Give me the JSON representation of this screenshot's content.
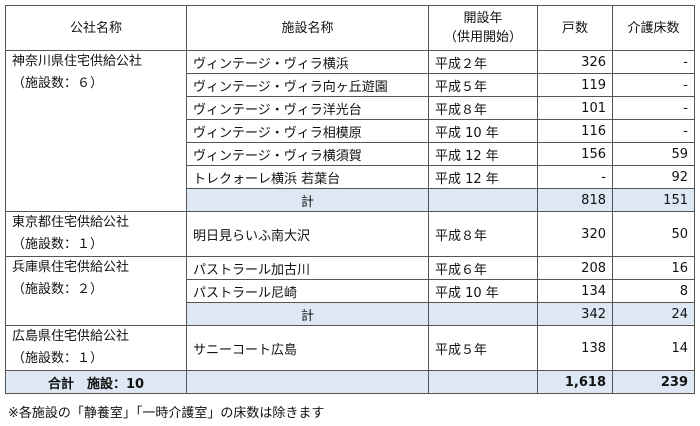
{
  "headers": {
    "company": "公社名称",
    "facility": "施設名称",
    "year_line1": "開設年",
    "year_line2": "（供用開始）",
    "units": "戸数",
    "beds": "介護床数"
  },
  "groups": [
    {
      "company": "神奈川県住宅供給公社",
      "count": "（施設数：６）",
      "rows": [
        {
          "facility": "ヴィンテージ・ヴィラ横浜",
          "year": "平成２年",
          "units": "326",
          "beds": "-"
        },
        {
          "facility": "ヴィンテージ・ヴィラ向ヶ丘遊園",
          "year": "平成５年",
          "units": "119",
          "beds": "-"
        },
        {
          "facility": "ヴィンテージ・ヴィラ洋光台",
          "year": "平成８年",
          "units": "101",
          "beds": "-"
        },
        {
          "facility": "ヴィンテージ・ヴィラ相模原",
          "year": "平成 10 年",
          "units": "116",
          "beds": "-"
        },
        {
          "facility": "ヴィンテージ・ヴィラ横須賀",
          "year": "平成 12 年",
          "units": "156",
          "beds": "59"
        },
        {
          "facility": "トレクォーレ横浜 若葉台",
          "year": "平成 12 年",
          "units": "-",
          "beds": "92"
        }
      ],
      "subtotal": {
        "label": "計",
        "units": "818",
        "beds": "151"
      }
    },
    {
      "company": "東京都住宅供給公社",
      "count": "（施設数：１）",
      "rows": [
        {
          "facility": "明日見らいふ南大沢",
          "year": "平成８年",
          "units": "320",
          "beds": "50"
        }
      ]
    },
    {
      "company": "兵庫県住宅供給公社",
      "count": "（施設数：２）",
      "rows": [
        {
          "facility": "パストラール加古川",
          "year": "平成６年",
          "units": "208",
          "beds": "16"
        },
        {
          "facility": "パストラール尼崎",
          "year": "平成 10 年",
          "units": "134",
          "beds": "8"
        }
      ],
      "subtotal": {
        "label": "計",
        "units": "342",
        "beds": "24"
      }
    },
    {
      "company": "広島県住宅供給公社",
      "count": "（施設数：１）",
      "rows": [
        {
          "facility": "サニーコート広島",
          "year": "平成５年",
          "units": "138",
          "beds": "14"
        }
      ]
    }
  ],
  "total": {
    "label": "合計　施設：10",
    "units": "1,618",
    "beds": "239"
  },
  "footnote": "※各施設の「静養室」「一時介護室」の床数は除きます",
  "colors": {
    "highlight": "#dde8f4",
    "border": "#555555"
  }
}
